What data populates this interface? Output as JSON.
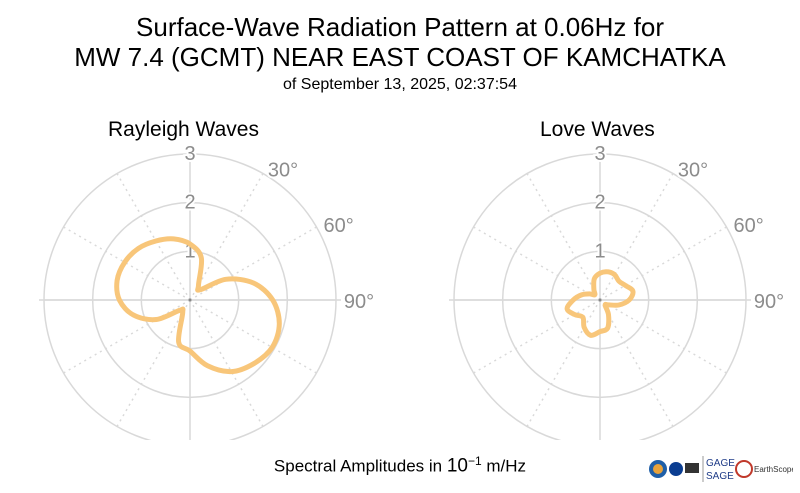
{
  "title": {
    "line1": "Surface-Wave Radiation Pattern at 0.06Hz for",
    "line2": "MW 7.4 (GCMT) NEAR EAST COAST OF KAMCHATKA",
    "line3": "of September 13, 2025, 02:37:54"
  },
  "footer": {
    "prefix": "Spectral Amplitudes in ",
    "base": "10",
    "exponent": "−1",
    "unit": " m/Hz"
  },
  "logos": {
    "gage": "GAGE",
    "sage": "SAGE",
    "earthscope": "EarthScope"
  },
  "chart_data": [
    {
      "type": "polar",
      "title": "Rayleigh Waves",
      "r_ticks": [
        1,
        2,
        3
      ],
      "r_tick_labels": [
        "1",
        "2",
        "3"
      ],
      "theta_tick_labels": [
        "30°",
        "60°",
        "90°"
      ],
      "rlim": [
        0,
        3
      ],
      "theta_direction": "clockwise",
      "theta_zero": "north",
      "grid": true,
      "color": "#f8c67a",
      "series": [
        {
          "theta_deg": [
            0,
            15,
            30,
            45,
            60,
            75,
            90,
            105,
            120,
            135,
            150,
            165,
            180,
            195,
            210,
            225,
            240,
            255,
            270,
            285,
            300,
            315,
            330,
            345
          ],
          "r": [
            1.15,
            0.9,
            0.35,
            0.3,
            0.85,
            1.35,
            1.7,
            1.9,
            1.95,
            1.85,
            1.7,
            1.4,
            1.05,
            0.9,
            0.3,
            0.3,
            0.8,
            1.2,
            1.45,
            1.55,
            1.55,
            1.5,
            1.4,
            1.3
          ]
        }
      ]
    },
    {
      "type": "polar",
      "title": "Love Waves",
      "r_ticks": [
        1,
        2,
        3
      ],
      "r_tick_labels": [
        "1",
        "2",
        "3"
      ],
      "theta_tick_labels": [
        "30°",
        "60°",
        "90°"
      ],
      "rlim": [
        0,
        3
      ],
      "theta_direction": "clockwise",
      "theta_zero": "north",
      "grid": true,
      "color": "#f8c67a",
      "series": [
        {
          "theta_deg": [
            0,
            15,
            30,
            45,
            60,
            75,
            90,
            105,
            120,
            135,
            150,
            165,
            180,
            195,
            210,
            225,
            240,
            255,
            270,
            285,
            300,
            315,
            330,
            345
          ],
          "r": [
            0.55,
            0.6,
            0.6,
            0.55,
            0.6,
            0.7,
            0.6,
            0.4,
            0.2,
            0.15,
            0.35,
            0.6,
            0.65,
            0.75,
            0.65,
            0.5,
            0.6,
            0.7,
            0.55,
            0.4,
            0.25,
            0.15,
            0.25,
            0.45
          ]
        }
      ]
    }
  ]
}
